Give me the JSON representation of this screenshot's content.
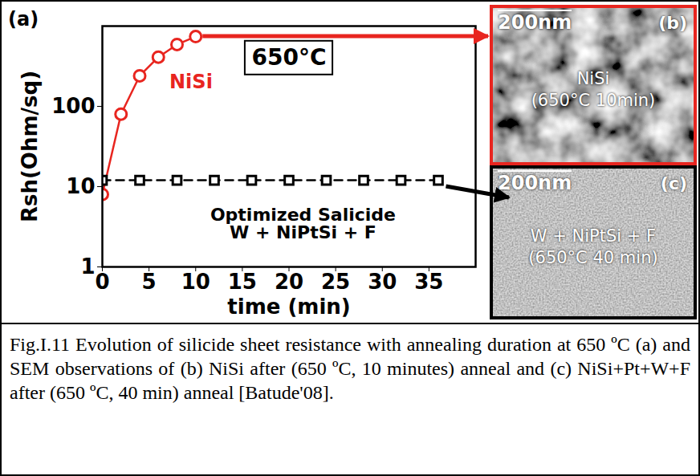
{
  "chart_data": {
    "type": "line",
    "panel_label": "(a)",
    "annotation": "650°C",
    "xlabel": "time (min)",
    "ylabel": "Rsh(Ohm/sq)",
    "log": "y",
    "grid": false,
    "xlim": [
      0,
      40
    ],
    "xticks": [
      0,
      5,
      10,
      15,
      20,
      25,
      30,
      35
    ],
    "ylim": [
      1,
      1000
    ],
    "yticks": [
      1,
      10,
      100
    ],
    "series": [
      {
        "name": "NiSi",
        "color": "#e8251f",
        "marker": "circle",
        "line_style": "solid",
        "x": [
          0,
          2,
          4,
          6,
          8,
          10
        ],
        "values": [
          8,
          80,
          240,
          410,
          590,
          740
        ]
      },
      {
        "name": "Optimized Salicide\nW + NiPtSi + F",
        "color": "#000000",
        "marker": "square",
        "line_style": "dashed",
        "x": [
          0,
          4,
          8,
          12,
          16,
          20,
          24,
          28,
          32,
          36
        ],
        "values": [
          12,
          12,
          12,
          12,
          12,
          12,
          12,
          12,
          12,
          12
        ]
      }
    ]
  },
  "images": [
    {
      "label": "(b)",
      "scale_bar": "200nm",
      "text": [
        "NiSi",
        "(650°C 10min)"
      ],
      "color": "#e8251f"
    },
    {
      "label": "(c)",
      "scale_bar": "200nm",
      "text": [
        "W + NiPtSi + F",
        "(650°C 40 min)"
      ],
      "color": "#000000"
    }
  ],
  "caption": "Fig.I.11 Evolution of silicide sheet resistance with annealing duration at 650 ºC (a) and SEM observations of (b) NiSi after (650 ºC, 10 minutes) anneal and (c) NiSi+Pt+W+F after (650 ºC, 40 min) anneal [Batude'08]."
}
